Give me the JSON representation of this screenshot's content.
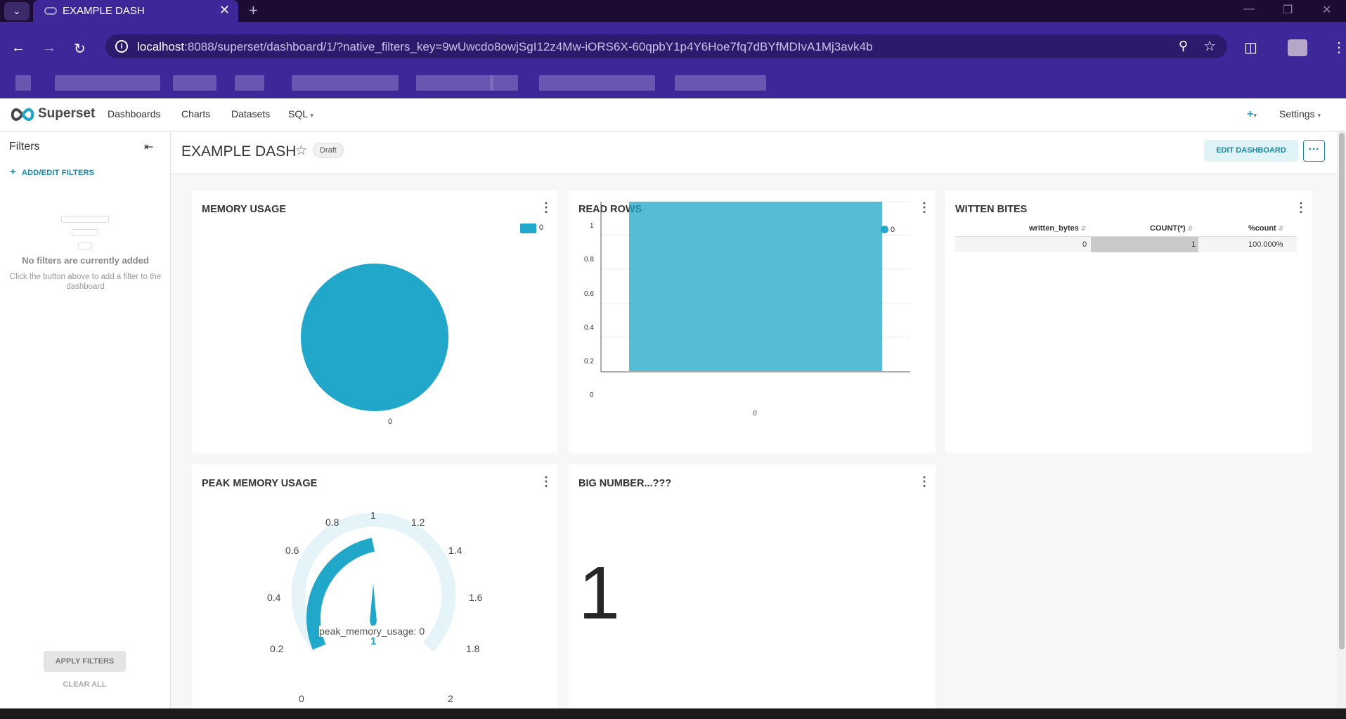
{
  "browser": {
    "tab_title": "EXAMPLE DASH",
    "url_host": "localhost",
    "url_rest": ":8088/superset/dashboard/1/?native_filters_key=9wUwcdo8owjSgI12z4Mw-iORS6X-60qpbY1p4Y6Hoe7fq7dBYfMDIvA1Mj3avk4b"
  },
  "nav": {
    "brand": "Superset",
    "items": [
      "Dashboards",
      "Charts",
      "Datasets",
      "SQL"
    ],
    "settings": "Settings"
  },
  "filters": {
    "title": "Filters",
    "add": "ADD/EDIT FILTERS",
    "empty_title": "No filters are currently added",
    "empty_desc": "Click the button above to add a filter to the dashboard",
    "apply": "APPLY FILTERS",
    "clear": "CLEAR ALL"
  },
  "dashboard": {
    "title": "EXAMPLE DASH",
    "status": "Draft",
    "edit": "EDIT DASHBOARD",
    "more": "···"
  },
  "charts": {
    "memory_usage": {
      "title": "MEMORY USAGE",
      "legend": "0",
      "slice_label": "0"
    },
    "read_rows": {
      "title": "READ ROWS",
      "legend": "0",
      "x_label": "0",
      "y_ticks": [
        "1",
        "0.8",
        "0.6",
        "0.4",
        "0.2",
        "0"
      ]
    },
    "written_bites": {
      "title": "WITTEN BITES",
      "columns": [
        "written_bytes",
        "COUNT(*)",
        "%count"
      ],
      "row": [
        "0",
        "1",
        "100.000%"
      ]
    },
    "peak_memory": {
      "title": "PEAK MEMORY USAGE",
      "ticks": [
        "0",
        "0.2",
        "0.4",
        "0.6",
        "0.8",
        "1",
        "1.2",
        "1.4",
        "1.6",
        "1.8",
        "2"
      ],
      "detail": "peak_memory_usage: 0",
      "value": "1"
    },
    "big_number": {
      "title": "BIG NUMBER...???",
      "value": "1"
    }
  },
  "chart_data": [
    {
      "type": "pie",
      "title": "MEMORY USAGE",
      "categories": [
        "0"
      ],
      "values": [
        1
      ]
    },
    {
      "type": "bar",
      "title": "READ ROWS",
      "categories": [
        "0"
      ],
      "series": [
        {
          "name": "0",
          "values": [
            1
          ]
        }
      ],
      "ylim": [
        0,
        1
      ]
    },
    {
      "type": "table",
      "title": "WITTEN BITES",
      "columns": [
        "written_bytes",
        "COUNT(*)",
        "%count"
      ],
      "rows": [
        [
          "0",
          "1",
          "100.000%"
        ]
      ]
    },
    {
      "type": "gauge",
      "title": "PEAK MEMORY USAGE",
      "value": 1,
      "min": 0,
      "max": 2
    },
    {
      "type": "big_number",
      "title": "BIG NUMBER...???",
      "value": 1
    }
  ],
  "colors": {
    "accent": "#20a7c9",
    "header_purple": "#3e2798"
  }
}
